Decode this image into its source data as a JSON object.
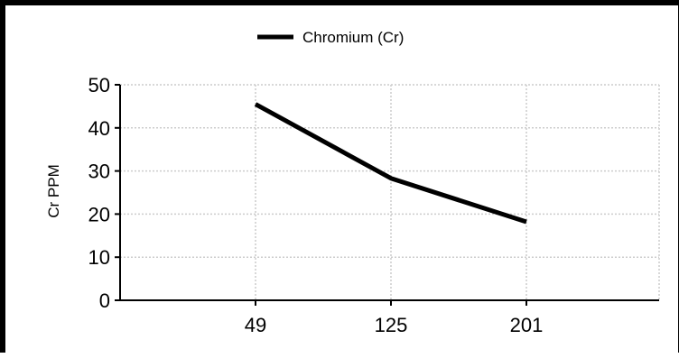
{
  "chart_data": {
    "type": "line",
    "title": "",
    "xlabel": "",
    "ylabel": "Cr PPM",
    "categories": [
      "49",
      "125",
      "201"
    ],
    "series": [
      {
        "name": "Chromium (Cr)",
        "values": [
          45.5,
          28.3,
          18.2
        ],
        "color": "#000000"
      }
    ],
    "ylim": [
      0,
      50
    ],
    "yticks": [
      0,
      10,
      20,
      30,
      40,
      50
    ],
    "grid": true,
    "legend_position": "top-center"
  }
}
